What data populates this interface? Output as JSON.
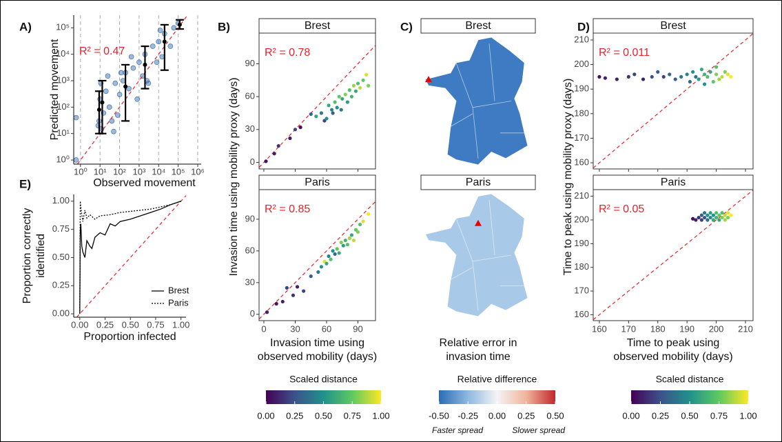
{
  "chart_data": [
    {
      "type": "scatter",
      "label": "A)",
      "x_title": "Observed movement",
      "y_title": "Predicted movement",
      "log_x": true,
      "log_y": true,
      "xlim": [
        0.45,
        1500000
      ],
      "ylim": [
        0.7,
        300000
      ],
      "xticks": [
        {
          "value": 1,
          "label": "10⁰"
        },
        {
          "value": 10,
          "label": "10¹"
        },
        {
          "value": 100,
          "label": "10²"
        },
        {
          "value": 1000,
          "label": "10³"
        },
        {
          "value": 10000,
          "label": "10⁴"
        },
        {
          "value": 100000,
          "label": "10⁵"
        },
        {
          "value": 1000000,
          "label": "10⁶"
        }
      ],
      "yticks": [
        {
          "value": 1,
          "label": "10⁰"
        },
        {
          "value": 10,
          "label": "10¹"
        },
        {
          "value": 100,
          "label": "10²"
        },
        {
          "value": 1000,
          "label": "10³"
        },
        {
          "value": 10000,
          "label": "10⁴"
        },
        {
          "value": 100000,
          "label": "10⁵"
        }
      ],
      "x_grid": true,
      "diagonal": true,
      "annotation": "R² = 0.47",
      "annotation_color": "#e8202a",
      "color": "#2a64a8",
      "x": [
        8,
        10,
        12,
        15,
        20,
        30,
        40,
        60,
        80,
        100,
        150,
        200,
        300,
        500,
        800,
        1000,
        1500,
        2000,
        3000,
        5000,
        8000,
        10000,
        15000,
        20000,
        40000,
        60000,
        100000,
        9,
        11,
        25,
        50,
        120,
        400,
        2500,
        12000,
        0.6,
        0.6
      ],
      "y": [
        20,
        200,
        15,
        60,
        400,
        100,
        30,
        800,
        50,
        300,
        1000,
        2000,
        500,
        3000,
        200,
        5000,
        1500,
        10000,
        800,
        20000,
        5000,
        30000,
        8000,
        60000,
        20000,
        100000,
        150000,
        30,
        800,
        1500,
        12,
        2000,
        8000,
        1000,
        80000,
        1,
        40
      ],
      "error_bars": {
        "x": [
          9,
          13,
          200,
          2000,
          20000,
          120000
        ],
        "median": [
          80,
          150,
          600,
          4000,
          30000,
          130000
        ],
        "low": [
          10,
          10,
          30,
          500,
          2500,
          90000
        ],
        "high": [
          400,
          1000,
          4000,
          20000,
          130000,
          200000
        ]
      }
    },
    {
      "type": "facet_scatter",
      "label": "B)",
      "x_title": [
        "Invasion time using",
        "observed mobility (days)"
      ],
      "y_title": "Invasion time using mobility proxy (days)",
      "xlim": [
        -4.6,
        106.8
      ],
      "xticks": [
        0,
        30,
        60,
        90
      ],
      "ylim": [
        -6,
        118
      ],
      "yticks": [
        0,
        30,
        60,
        90
      ],
      "diagonal": true,
      "annotation_color": "#e8202a",
      "colormap": [
        "#440154",
        "#3b528b",
        "#21918c",
        "#5ec962",
        "#fde725"
      ],
      "colorbar": {
        "title": "Scaled distance",
        "lim": [
          0,
          1
        ],
        "ticks": [
          {
            "value": 0,
            "label": "0.00"
          },
          {
            "value": 0.25,
            "label": "0.25"
          },
          {
            "value": 0.5,
            "label": "0.50"
          },
          {
            "value": 0.75,
            "label": "0.75"
          },
          {
            "value": 1,
            "label": "1.00"
          }
        ]
      },
      "facets": [
        {
          "title": "Brest",
          "annotation": "R² = 0.78",
          "x": [
            2,
            10,
            14,
            25,
            30,
            35,
            45,
            50,
            55,
            58,
            60,
            62,
            65,
            66,
            68,
            70,
            72,
            74,
            75,
            78,
            80,
            82,
            84,
            86,
            88,
            90,
            92,
            95,
            98,
            100
          ],
          "y": [
            1,
            8,
            15,
            22,
            30,
            32,
            44,
            42,
            45,
            38,
            40,
            52,
            48,
            45,
            55,
            50,
            60,
            48,
            58,
            62,
            55,
            66,
            60,
            70,
            65,
            72,
            68,
            75,
            80,
            70
          ],
          "c": [
            0.05,
            0.1,
            0.15,
            0.1,
            0.2,
            0.05,
            0.3,
            0.6,
            0.4,
            0.2,
            0.5,
            0.6,
            0.45,
            0.3,
            0.7,
            0.5,
            0.75,
            0.4,
            0.6,
            0.8,
            0.55,
            0.7,
            0.65,
            0.85,
            0.6,
            0.7,
            0.9,
            0.75,
            0.95,
            0.8
          ]
        },
        {
          "title": "Paris",
          "annotation": "R² = 0.85",
          "x": [
            3,
            12,
            18,
            22,
            28,
            32,
            38,
            45,
            52,
            55,
            58,
            60,
            62,
            64,
            66,
            68,
            70,
            72,
            74,
            76,
            78,
            80,
            82,
            84,
            86,
            88,
            90,
            92,
            95,
            100
          ],
          "y": [
            2,
            10,
            12,
            25,
            18,
            26,
            22,
            36,
            40,
            45,
            50,
            48,
            55,
            52,
            60,
            57,
            62,
            58,
            68,
            65,
            70,
            66,
            72,
            75,
            70,
            80,
            78,
            85,
            88,
            95
          ],
          "c": [
            0.1,
            0.05,
            0.1,
            0.2,
            0.15,
            0.1,
            0.2,
            0.3,
            0.4,
            0.5,
            0.95,
            0.6,
            0.45,
            0.7,
            0.5,
            0.35,
            0.75,
            0.6,
            0.8,
            0.55,
            0.65,
            0.7,
            0.85,
            0.6,
            0.9,
            0.75,
            0.8,
            0.7,
            0.95,
            1.0
          ]
        }
      ]
    },
    {
      "type": "map",
      "label": "C)",
      "x_title": [
        "Relative error in",
        "invasion time"
      ],
      "colormap": [
        "#2c6db5",
        "#8db8e0",
        "#f4f4f4",
        "#f0b49c",
        "#c1272d"
      ],
      "colorbar": {
        "title": "Relative difference",
        "lim": [
          -0.5,
          0.5
        ],
        "ticks": [
          {
            "value": -0.5,
            "label": "-0.50"
          },
          {
            "value": -0.25,
            "label": "-0.25"
          },
          {
            "value": 0,
            "label": "0.00"
          },
          {
            "value": 0.25,
            "label": "0.25"
          },
          {
            "value": 0.5,
            "label": "0.50"
          }
        ],
        "low_label": "Faster spread",
        "high_label": "Slower spread"
      },
      "facets": [
        {
          "title": "Brest"
        },
        {
          "title": "Paris"
        }
      ]
    },
    {
      "type": "facet_scatter",
      "label": "D)",
      "x_title": [
        "Time to peak using",
        "observed mobility (days)"
      ],
      "y_title": "Time to peak using mobility proxy (days)",
      "xlim": [
        157.9,
        212.6
      ],
      "xticks": [
        160,
        170,
        180,
        190,
        200,
        210
      ],
      "ylim": [
        157.5,
        212.8
      ],
      "yticks": [
        160,
        170,
        180,
        190,
        200,
        210
      ],
      "diagonal": true,
      "annotation_color": "#e8202a",
      "colormap": [
        "#440154",
        "#3b528b",
        "#21918c",
        "#5ec962",
        "#fde725"
      ],
      "colorbar": {
        "title": "Scaled distance",
        "lim": [
          0,
          1
        ],
        "ticks": [
          {
            "value": 0,
            "label": "0.00"
          },
          {
            "value": 0.25,
            "label": "0.25"
          },
          {
            "value": 0.5,
            "label": "0.50"
          },
          {
            "value": 0.75,
            "label": "0.75"
          },
          {
            "value": 1,
            "label": "1.00"
          }
        ]
      },
      "facets": [
        {
          "title": "Brest",
          "annotation": "R² = 0.011",
          "x": [
            160,
            162,
            166,
            170,
            172,
            175,
            178,
            180,
            182,
            184,
            186,
            188,
            190,
            191,
            192,
            193,
            194,
            195,
            196,
            196,
            197,
            198,
            199,
            200,
            200,
            201,
            202,
            203,
            204,
            205
          ],
          "y": [
            195,
            194.5,
            194,
            195,
            196,
            194,
            195,
            197,
            195,
            196,
            194,
            195,
            196,
            193,
            197,
            195,
            194,
            198,
            192,
            196,
            195,
            197,
            193,
            196,
            199,
            194,
            195,
            197,
            196,
            195
          ],
          "c": [
            0.05,
            0.1,
            0.1,
            0.15,
            0.2,
            0.1,
            0.25,
            0.3,
            0.2,
            0.35,
            0.3,
            0.4,
            0.45,
            0.35,
            0.5,
            0.4,
            0.55,
            0.6,
            0.5,
            0.65,
            0.7,
            0.6,
            0.75,
            0.8,
            0.7,
            0.85,
            0.9,
            0.8,
            0.95,
            1.0
          ]
        },
        {
          "title": "Paris",
          "annotation": "R² = 0.05",
          "x": [
            192,
            193,
            194,
            195,
            195,
            196,
            196,
            197,
            197,
            198,
            198,
            199,
            199,
            200,
            200,
            201,
            201,
            202,
            202,
            203,
            203,
            204,
            204,
            205
          ],
          "y": [
            200.5,
            200,
            201,
            200,
            202,
            201,
            203,
            200,
            202,
            201,
            203,
            200,
            202,
            201,
            203,
            200,
            202,
            201,
            203,
            200,
            202,
            201,
            203,
            202
          ],
          "c": [
            0.05,
            0.1,
            0.15,
            0.2,
            0.3,
            0.25,
            0.4,
            0.35,
            0.5,
            0.45,
            0.55,
            0.6,
            0.5,
            0.65,
            0.7,
            0.6,
            0.75,
            0.8,
            0.7,
            0.85,
            0.9,
            0.8,
            0.95,
            1.0
          ]
        }
      ]
    },
    {
      "type": "line",
      "label": "E)",
      "x_title": "Proportion infected",
      "y_title": [
        "Proportion correctly",
        "identified"
      ],
      "xlim": [
        -0.06,
        1.05
      ],
      "ylim": [
        -0.03,
        1.06
      ],
      "xticks": [
        {
          "value": 0,
          "label": "0.00"
        },
        {
          "value": 0.25,
          "label": "0.25"
        },
        {
          "value": 0.5,
          "label": "0.50"
        },
        {
          "value": 0.75,
          "label": "0.75"
        },
        {
          "value": 1,
          "label": "1.00"
        }
      ],
      "yticks": [
        {
          "value": 0,
          "label": "0.00"
        },
        {
          "value": 0.25,
          "label": "0.25"
        },
        {
          "value": 0.5,
          "label": "0.50"
        },
        {
          "value": 0.75,
          "label": "0.75"
        },
        {
          "value": 1,
          "label": "1.00"
        }
      ],
      "diagonal": true,
      "annotation_color": "#e8202a",
      "color": "#000000",
      "legend": "bottom-right",
      "series": [
        {
          "name": "Brest",
          "dash": "solid",
          "x": [
            0,
            0.005,
            0.01,
            0.02,
            0.03,
            0.05,
            0.07,
            0.1,
            0.12,
            0.15,
            0.2,
            0.25,
            0.3,
            0.35,
            0.4,
            0.5,
            0.6,
            0.7,
            0.8,
            0.9,
            1.0
          ],
          "values": [
            0,
            0.75,
            0.8,
            0.6,
            0.55,
            0.5,
            0.65,
            0.6,
            0.58,
            0.68,
            0.72,
            0.7,
            0.8,
            0.78,
            0.82,
            0.84,
            0.87,
            0.9,
            0.93,
            0.97,
            1.0
          ]
        },
        {
          "name": "Paris",
          "dash": "dashed",
          "x": [
            0,
            0.005,
            0.01,
            0.02,
            0.03,
            0.05,
            0.07,
            0.1,
            0.15,
            0.2,
            0.3,
            0.4,
            0.5,
            0.6,
            0.7,
            0.8,
            0.9,
            1.0
          ],
          "values": [
            0,
            1.0,
            0.95,
            0.88,
            0.82,
            0.92,
            0.85,
            0.88,
            0.84,
            0.87,
            0.88,
            0.9,
            0.91,
            0.92,
            0.93,
            0.95,
            0.97,
            1.0
          ]
        }
      ]
    }
  ]
}
